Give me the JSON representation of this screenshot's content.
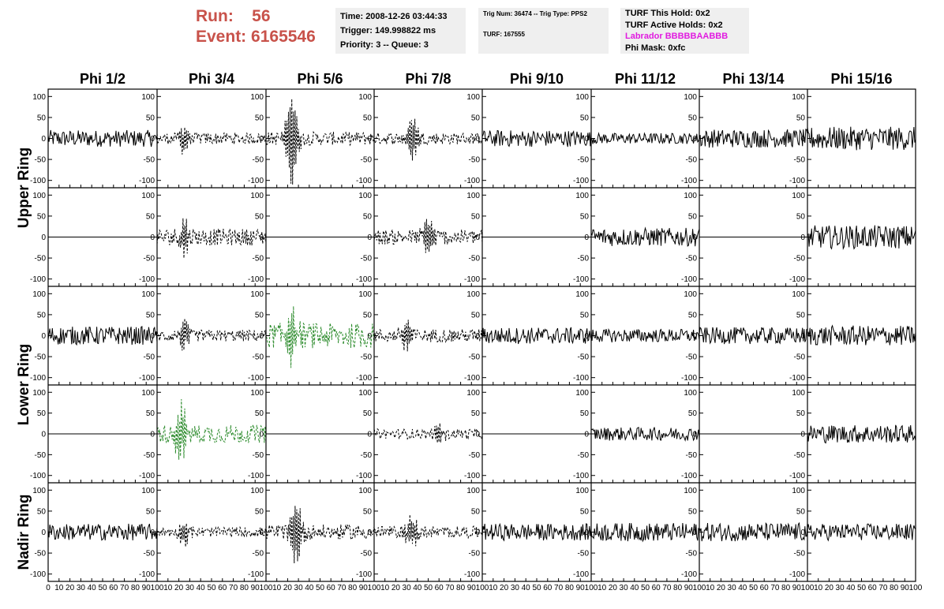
{
  "header": {
    "run_label": "Run:",
    "run_value": "56",
    "event_label": "Event:",
    "event_value": "6165546"
  },
  "info_panels": {
    "time": "Time: 2008-12-26 03:44:33",
    "trigger": "Trigger: 149.998822 ms",
    "priority": "Priority: 3 -- Queue: 3",
    "trig_num": "Trig Num: 36474 -- Trig Type: PPS2",
    "turf": "TURF: 167555",
    "turf_this_hold": "TURF This Hold: 0x2",
    "turf_active_holds": "TURF Active Holds: 0x2",
    "labrador": "Labrador BBBBBAABBB",
    "phi_mask": "Phi Mask: 0xfc"
  },
  "colors": {
    "run_text": "#c8524a",
    "labrador_text": "#e11be0",
    "trace_normal": "#000000",
    "trace_highlight": "#2a8a2a",
    "panel_bg": "#efefef"
  },
  "chart_data": {
    "type": "line",
    "columns": [
      "Phi 1/2",
      "Phi 3/4",
      "Phi 5/6",
      "Phi 7/8",
      "Phi 9/10",
      "Phi 11/12",
      "Phi 13/14",
      "Phi 15/16"
    ],
    "row_groups": [
      {
        "label": "Upper Ring",
        "rows": [
          0,
          1
        ]
      },
      {
        "label": "Lower Ring",
        "rows": [
          2,
          3
        ]
      },
      {
        "label": "Nadir Ring",
        "rows": [
          4
        ]
      }
    ],
    "xlim": [
      0,
      100
    ],
    "ylim": [
      -110,
      110
    ],
    "x_ticks": [
      0,
      10,
      20,
      30,
      40,
      50,
      60,
      70,
      80,
      90,
      100
    ],
    "x_tick_labels": [
      "0",
      "10",
      "20",
      "30",
      "40",
      "50",
      "60",
      "70",
      "80",
      "90",
      "100"
    ],
    "y_ticks": [
      -100,
      -50,
      0,
      50,
      100
    ],
    "y_tick_labels": [
      "-100",
      "-50",
      "0",
      "50",
      "100"
    ],
    "cells": [
      [
        {
          "style": "solid",
          "color": "#000000",
          "amp": 20,
          "pulse": 0,
          "pulse_at": 0
        },
        {
          "style": "dashed",
          "color": "#000000",
          "amp": 14,
          "pulse": 35,
          "pulse_at": 25
        },
        {
          "style": "dashed",
          "color": "#000000",
          "amp": 16,
          "pulse": 105,
          "pulse_at": 24
        },
        {
          "style": "dashed",
          "color": "#000000",
          "amp": 14,
          "pulse": 55,
          "pulse_at": 35
        },
        {
          "style": "solid",
          "color": "#000000",
          "amp": 20,
          "pulse": 0,
          "pulse_at": 0
        },
        {
          "style": "solid",
          "color": "#000000",
          "amp": 13,
          "pulse": 0,
          "pulse_at": 0
        },
        {
          "style": "solid",
          "color": "#000000",
          "amp": 22,
          "pulse": 0,
          "pulse_at": 0
        },
        {
          "style": "solid",
          "color": "#000000",
          "amp": 28,
          "pulse": 0,
          "pulse_at": 0
        }
      ],
      [
        {
          "style": "flat",
          "color": "#000000",
          "amp": 0,
          "pulse": 0,
          "pulse_at": 0
        },
        {
          "style": "dashed",
          "color": "#000000",
          "amp": 20,
          "pulse": 45,
          "pulse_at": 25
        },
        {
          "style": "flat",
          "color": "#000000",
          "amp": 0,
          "pulse": 0,
          "pulse_at": 0
        },
        {
          "style": "dashed",
          "color": "#000000",
          "amp": 18,
          "pulse": 40,
          "pulse_at": 50
        },
        {
          "style": "flat",
          "color": "#000000",
          "amp": 0,
          "pulse": 0,
          "pulse_at": 0
        },
        {
          "style": "solid",
          "color": "#000000",
          "amp": 22,
          "pulse": 0,
          "pulse_at": 0
        },
        {
          "style": "flat",
          "color": "#000000",
          "amp": 0,
          "pulse": 0,
          "pulse_at": 0
        },
        {
          "style": "solid",
          "color": "#000000",
          "amp": 28,
          "pulse": 0,
          "pulse_at": 0
        }
      ],
      [
        {
          "style": "solid",
          "color": "#000000",
          "amp": 22,
          "pulse": 0,
          "pulse_at": 0
        },
        {
          "style": "dashed",
          "color": "#000000",
          "amp": 14,
          "pulse": 35,
          "pulse_at": 25
        },
        {
          "style": "dashed",
          "color": "#2a8a2a",
          "amp": 30,
          "pulse": 70,
          "pulse_at": 24
        },
        {
          "style": "dashed",
          "color": "#000000",
          "amp": 16,
          "pulse": 40,
          "pulse_at": 30
        },
        {
          "style": "solid",
          "color": "#000000",
          "amp": 20,
          "pulse": 0,
          "pulse_at": 0
        },
        {
          "style": "solid",
          "color": "#000000",
          "amp": 16,
          "pulse": 0,
          "pulse_at": 0
        },
        {
          "style": "solid",
          "color": "#000000",
          "amp": 20,
          "pulse": 0,
          "pulse_at": 0
        },
        {
          "style": "solid",
          "color": "#000000",
          "amp": 24,
          "pulse": 0,
          "pulse_at": 0
        }
      ],
      [
        {
          "style": "flat",
          "color": "#000000",
          "amp": 0,
          "pulse": 0,
          "pulse_at": 0
        },
        {
          "style": "dashed",
          "color": "#2a8a2a",
          "amp": 22,
          "pulse": 70,
          "pulse_at": 22
        },
        {
          "style": "flat",
          "color": "#000000",
          "amp": 0,
          "pulse": 0,
          "pulse_at": 0
        },
        {
          "style": "dashed",
          "color": "#000000",
          "amp": 12,
          "pulse": 25,
          "pulse_at": 60
        },
        {
          "style": "flat",
          "color": "#000000",
          "amp": 0,
          "pulse": 0,
          "pulse_at": 0
        },
        {
          "style": "solid",
          "color": "#000000",
          "amp": 16,
          "pulse": 0,
          "pulse_at": 0
        },
        {
          "style": "flat",
          "color": "#000000",
          "amp": 0,
          "pulse": 0,
          "pulse_at": 0
        },
        {
          "style": "solid",
          "color": "#000000",
          "amp": 22,
          "pulse": 0,
          "pulse_at": 0
        }
      ],
      [
        {
          "style": "solid",
          "color": "#000000",
          "amp": 20,
          "pulse": 0,
          "pulse_at": 0
        },
        {
          "style": "dashed",
          "color": "#000000",
          "amp": 12,
          "pulse": 25,
          "pulse_at": 25
        },
        {
          "style": "dashed",
          "color": "#000000",
          "amp": 18,
          "pulse": 80,
          "pulse_at": 28
        },
        {
          "style": "dashed",
          "color": "#000000",
          "amp": 14,
          "pulse": 40,
          "pulse_at": 35
        },
        {
          "style": "solid",
          "color": "#000000",
          "amp": 20,
          "pulse": 0,
          "pulse_at": 0
        },
        {
          "style": "solid",
          "color": "#000000",
          "amp": 22,
          "pulse": 0,
          "pulse_at": 0
        },
        {
          "style": "solid",
          "color": "#000000",
          "amp": 22,
          "pulse": 0,
          "pulse_at": 0
        },
        {
          "style": "solid",
          "color": "#000000",
          "amp": 20,
          "pulse": 0,
          "pulse_at": 0
        }
      ]
    ]
  }
}
